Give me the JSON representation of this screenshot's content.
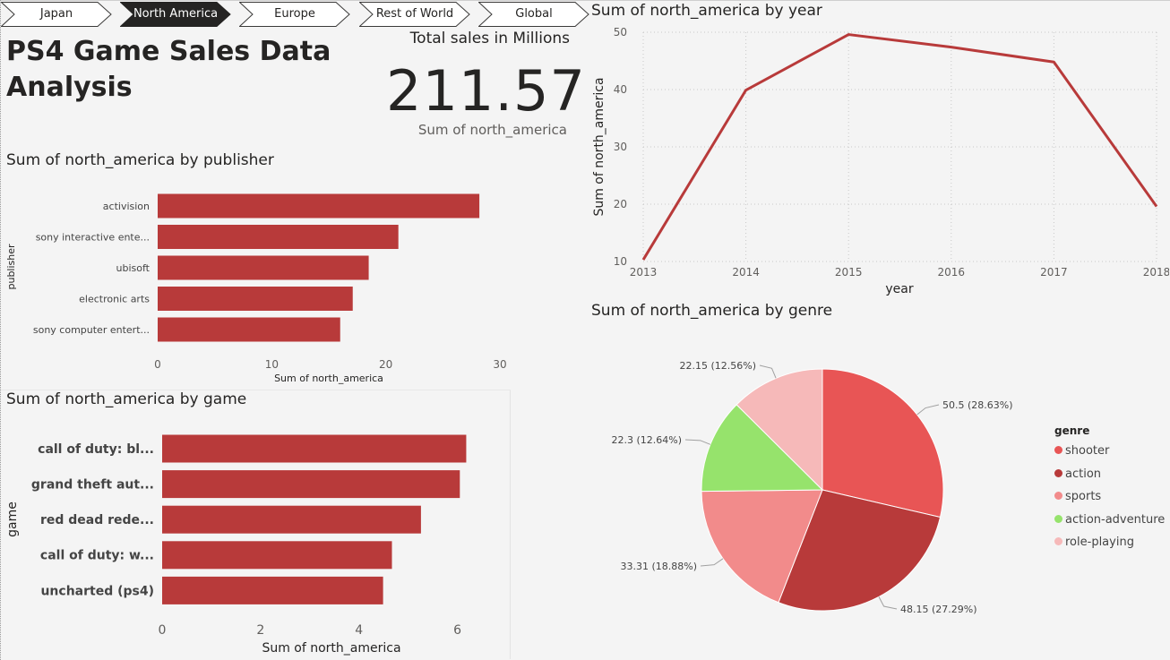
{
  "nav": {
    "tabs": [
      {
        "label": "Japan",
        "active": false
      },
      {
        "label": "North America",
        "active": true
      },
      {
        "label": "Europe",
        "active": false
      },
      {
        "label": "Rest of World",
        "active": false
      },
      {
        "label": "Global",
        "active": false
      }
    ]
  },
  "page": {
    "title": "PS4 Game Sales Data Analysis"
  },
  "kpi": {
    "label": "Total sales in Millions",
    "value": "211.57",
    "caption": "Sum of north_america"
  },
  "colors": {
    "bar": "#b83a3a",
    "nav_active": "#252423",
    "nav_border": "#3b3a39",
    "grid": "#d0d0d0"
  },
  "chart_data": [
    {
      "id": "publisher",
      "type": "bar",
      "orientation": "horizontal",
      "title": "Sum of north_america by publisher",
      "xlabel": "Sum of north_america",
      "ylabel": "publisher",
      "categories": [
        "activision",
        "sony interactive ente...",
        "ubisoft",
        "electronic arts",
        "sony computer entert..."
      ],
      "values": [
        28.2,
        21.1,
        18.5,
        17.1,
        16.0
      ],
      "xlim": [
        0,
        30
      ],
      "xticks": [
        0,
        10,
        20,
        30
      ]
    },
    {
      "id": "game",
      "type": "bar",
      "orientation": "horizontal",
      "title": "Sum of north_america by game",
      "xlabel": "Sum of north_america",
      "ylabel": "game",
      "categories": [
        "call of duty: bl...",
        "grand theft aut...",
        "red dead rede...",
        "call of duty: w...",
        "uncharted (ps4)"
      ],
      "values": [
        6.18,
        6.05,
        5.26,
        4.67,
        4.49
      ],
      "xlim": [
        0,
        6.5
      ],
      "xticks": [
        0,
        2,
        4,
        6
      ]
    },
    {
      "id": "year",
      "type": "line",
      "title": "Sum of north_america by year",
      "xlabel": "year",
      "ylabel": "Sum of north_america",
      "x": [
        2013,
        2014,
        2015,
        2016,
        2017,
        2018
      ],
      "series": [
        {
          "values": [
            10.3,
            39.9,
            49.6,
            47.4,
            44.8,
            19.6
          ]
        }
      ],
      "ylim": [
        10,
        50
      ],
      "yticks": [
        10,
        20,
        30,
        40,
        50
      ],
      "grid": true
    },
    {
      "id": "genre",
      "type": "pie",
      "title": "Sum of north_america by genre",
      "legend_title": "genre",
      "legend_position": "right",
      "slices": [
        {
          "label": "shooter",
          "value": 50.5,
          "data_label": "50.5 (28.63%)",
          "color": "#e85555"
        },
        {
          "label": "action",
          "value": 48.15,
          "data_label": "48.15 (27.29%)",
          "color": "#b83a3a"
        },
        {
          "label": "sports",
          "value": 33.31,
          "data_label": "33.31 (18.88%)",
          "color": "#f28b8b"
        },
        {
          "label": "action-adventure",
          "value": 22.3,
          "data_label": "22.3 (12.64%)",
          "color": "#96e36c"
        },
        {
          "label": "role-playing",
          "value": 22.15,
          "data_label": "22.15 (12.56%)",
          "color": "#f6b9b9"
        }
      ]
    }
  ]
}
